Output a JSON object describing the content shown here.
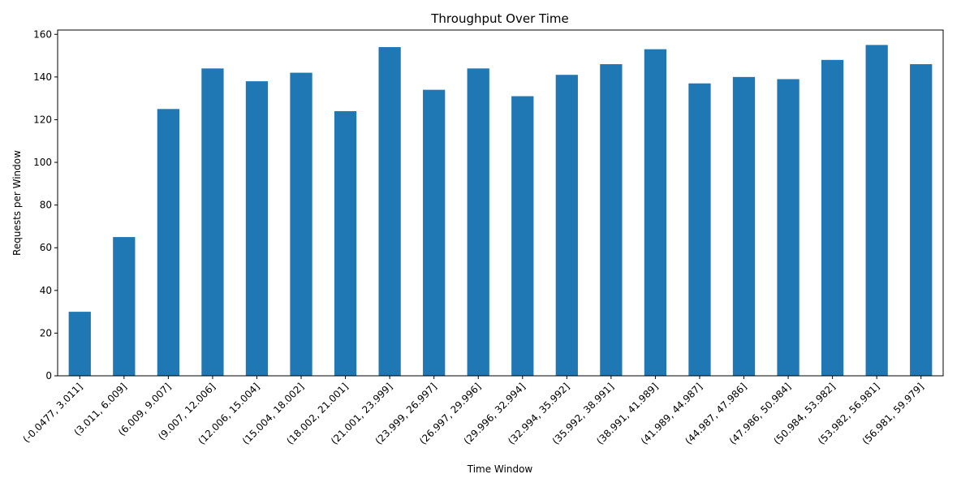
{
  "chart_data": {
    "type": "bar",
    "title": "Throughput Over Time",
    "xlabel": "Time Window",
    "ylabel": "Requests per Window",
    "categories": [
      "(-0.0477, 3.011]",
      "(3.011, 6.009]",
      "(6.009, 9.007]",
      "(9.007, 12.006]",
      "(12.006, 15.004]",
      "(15.004, 18.002]",
      "(18.002, 21.001]",
      "(21.001, 23.999]",
      "(23.999, 26.997]",
      "(26.997, 29.996]",
      "(29.996, 32.994]",
      "(32.994, 35.992]",
      "(35.992, 38.991]",
      "(38.991, 41.989]",
      "(41.989, 44.987]",
      "(44.987, 47.986]",
      "(47.986, 50.984]",
      "(50.984, 53.982]",
      "(53.982, 56.981]",
      "(56.981, 59.979]"
    ],
    "values": [
      30,
      65,
      125,
      144,
      138,
      142,
      124,
      154,
      134,
      144,
      131,
      141,
      146,
      153,
      137,
      140,
      139,
      148,
      155,
      146
    ],
    "ylim": [
      0,
      162
    ],
    "yticks": [
      0,
      20,
      40,
      60,
      80,
      100,
      120,
      140,
      160
    ],
    "bar_color": "#1f77b4",
    "grid": false,
    "legend": "none"
  }
}
